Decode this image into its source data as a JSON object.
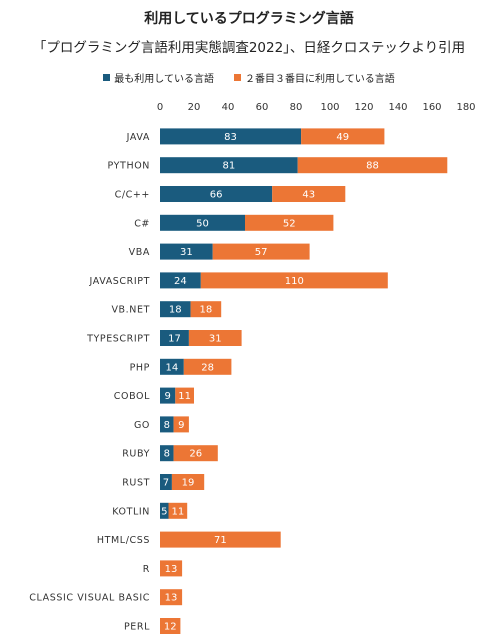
{
  "title": "利用しているプログラミング言語",
  "subtitle": "「プログラミング言語利用実態調査2022」、日経クロステックより引用",
  "colors": {
    "first": "#1a5b7e",
    "second_third": "#ec7635"
  },
  "chart_data": {
    "type": "bar",
    "orientation": "horizontal",
    "stacked": true,
    "legend_position": "top",
    "grid": false,
    "xlim": [
      0,
      180
    ],
    "xticks": [
      "0",
      "20",
      "40",
      "60",
      "80",
      "100",
      "120",
      "140",
      "160",
      "180"
    ],
    "categories": [
      "JAVA",
      "PYTHON",
      "C/C++",
      "C#",
      "VBA",
      "JAVASCRIPT",
      "VB.NET",
      "TYPESCRIPT",
      "PHP",
      "COBOL",
      "GO",
      "RUBY",
      "RUST",
      "KOTLIN",
      "HTML/CSS",
      "R",
      "CLASSIC VISUAL BASIC",
      "PERL"
    ],
    "series": [
      {
        "name": "最も利用している言語",
        "values": [
          83,
          81,
          66,
          50,
          31,
          24,
          18,
          17,
          14,
          9,
          8,
          8,
          7,
          5,
          0,
          0,
          0,
          0
        ]
      },
      {
        "name": "２番目３番目に利用している言語",
        "values": [
          49,
          88,
          43,
          52,
          57,
          110,
          18,
          31,
          28,
          11,
          9,
          26,
          19,
          11,
          71,
          13,
          13,
          12
        ]
      }
    ]
  }
}
